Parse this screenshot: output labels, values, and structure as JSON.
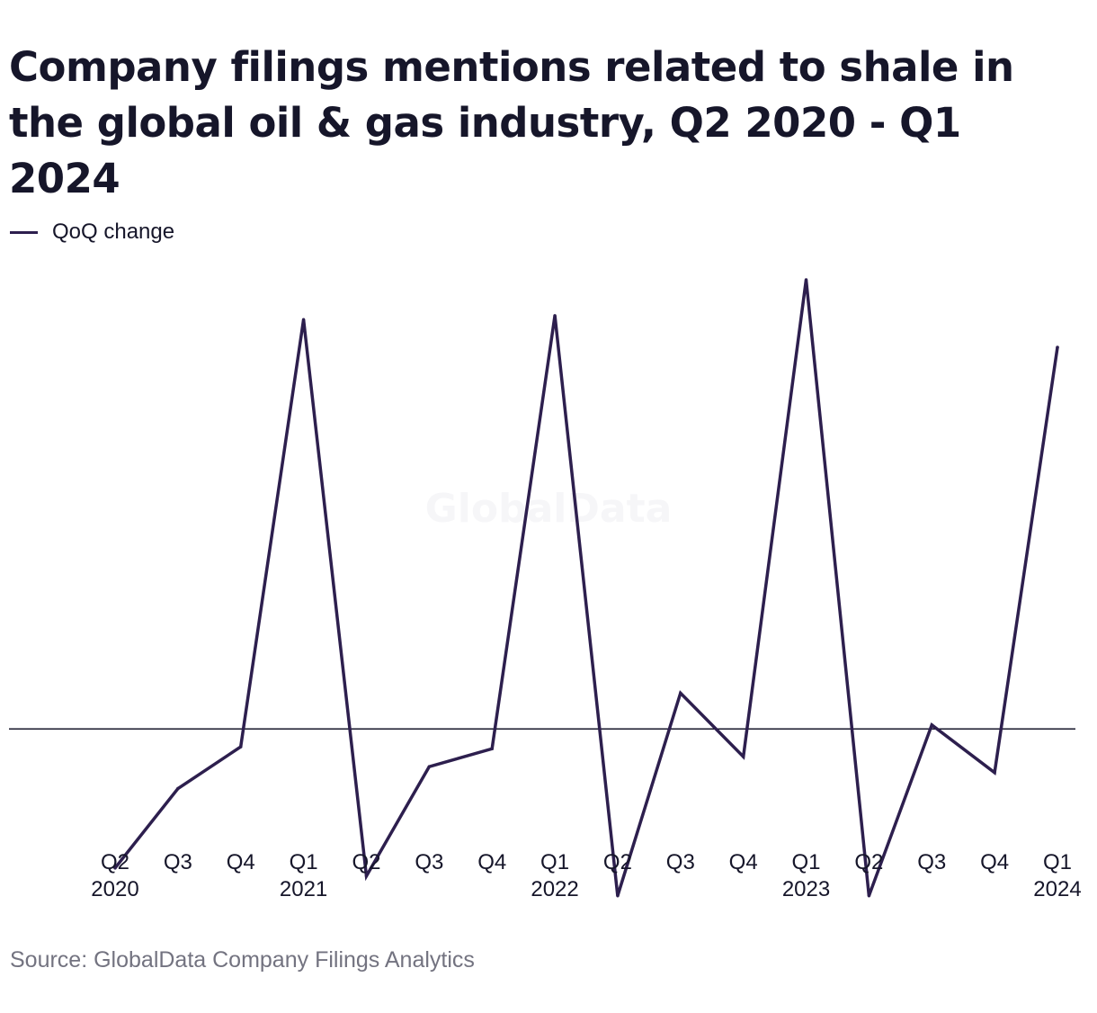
{
  "title": "Company filings mentions related to shale in the global oil & gas industry, Q2 2020 - Q1 2024",
  "watermark": "GlobalData",
  "source": "Source: GlobalData Company Filings Analytics",
  "colors": {
    "series": "#2d1f4e",
    "zero_line": "#16162a",
    "text": "#16162a",
    "source_text": "#737380"
  },
  "chart_data": {
    "type": "line",
    "title": "Company filings mentions related to shale in the global oil & gas industry, Q2 2020 - Q1 2024",
    "xlabel": "",
    "ylabel": "",
    "grid": false,
    "legend_position": "top-left",
    "ylim": [
      -45,
      125
    ],
    "zero_line": 0,
    "categories": [
      {
        "quarter": "Q2",
        "year": "2020"
      },
      {
        "quarter": "Q3",
        "year": ""
      },
      {
        "quarter": "Q4",
        "year": ""
      },
      {
        "quarter": "Q1",
        "year": "2021"
      },
      {
        "quarter": "Q2",
        "year": ""
      },
      {
        "quarter": "Q3",
        "year": ""
      },
      {
        "quarter": "Q4",
        "year": ""
      },
      {
        "quarter": "Q1",
        "year": "2022"
      },
      {
        "quarter": "Q2",
        "year": ""
      },
      {
        "quarter": "Q3",
        "year": ""
      },
      {
        "quarter": "Q4",
        "year": ""
      },
      {
        "quarter": "Q1",
        "year": "2023"
      },
      {
        "quarter": "Q2",
        "year": ""
      },
      {
        "quarter": "Q3",
        "year": ""
      },
      {
        "quarter": "Q4",
        "year": ""
      },
      {
        "quarter": "Q1",
        "year": "2024"
      }
    ],
    "series": [
      {
        "name": "QoQ change",
        "values": [
          -35,
          -15,
          -4.5,
          103,
          -37,
          -9.5,
          -5,
          104,
          -42,
          9,
          -7,
          113,
          -42,
          1,
          -11,
          96
        ]
      }
    ]
  }
}
